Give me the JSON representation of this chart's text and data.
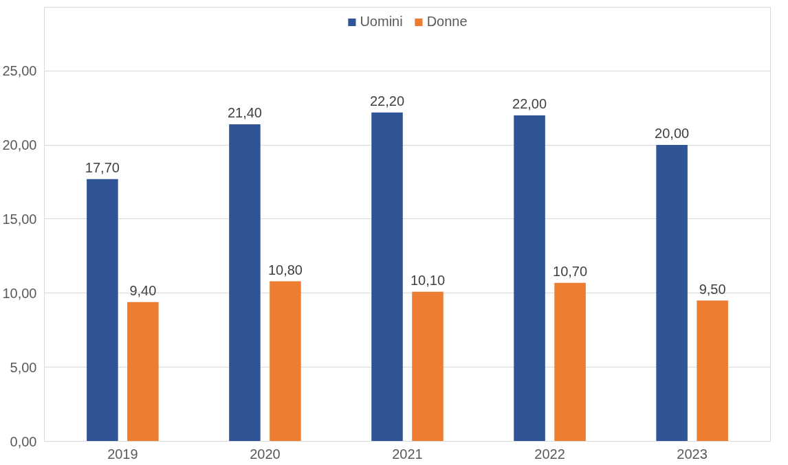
{
  "chart_data": {
    "type": "bar",
    "categories": [
      "2019",
      "2020",
      "2021",
      "2022",
      "2023"
    ],
    "series": [
      {
        "name": "Uomini",
        "color": "#2f5597",
        "values": [
          17.7,
          21.4,
          22.2,
          22.0,
          20.0
        ],
        "value_labels": [
          "17,70",
          "21,40",
          "22,20",
          "22,00",
          "20,00"
        ]
      },
      {
        "name": "Donne",
        "color": "#ed7d31",
        "values": [
          9.4,
          10.8,
          10.1,
          10.7,
          9.5
        ],
        "value_labels": [
          "9,40",
          "10,80",
          "10,10",
          "10,70",
          "9,50"
        ]
      }
    ],
    "ylim": [
      0,
      29.3
    ],
    "yticks": [
      {
        "value": 0,
        "label": "0,00"
      },
      {
        "value": 5,
        "label": "5,00"
      },
      {
        "value": 10,
        "label": "10,00"
      },
      {
        "value": 15,
        "label": "15,00"
      },
      {
        "value": 20,
        "label": "20,00"
      },
      {
        "value": 25,
        "label": "25,00"
      }
    ],
    "grid": "y",
    "legend": "top"
  }
}
